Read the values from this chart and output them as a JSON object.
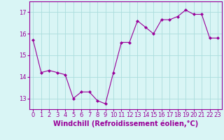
{
  "x": [
    0,
    1,
    2,
    3,
    4,
    5,
    6,
    7,
    8,
    9,
    10,
    11,
    12,
    13,
    14,
    15,
    16,
    17,
    18,
    19,
    20,
    21,
    22,
    23
  ],
  "y": [
    15.7,
    14.2,
    14.3,
    14.2,
    14.1,
    13.0,
    13.3,
    13.3,
    12.9,
    12.75,
    14.2,
    15.6,
    15.6,
    16.6,
    16.3,
    16.0,
    16.65,
    16.65,
    16.8,
    17.1,
    16.9,
    16.9,
    15.8,
    15.8
  ],
  "line_color": "#990099",
  "marker": "D",
  "marker_size": 2,
  "bg_color": "#d9f5f5",
  "grid_color": "#aadddd",
  "xlabel": "Windchill (Refroidissement éolien,°C)",
  "xlabel_fontsize": 7,
  "tick_fontsize": 6,
  "ylim": [
    12.5,
    17.5
  ],
  "yticks": [
    13,
    14,
    15,
    16,
    17
  ],
  "xticks": [
    0,
    1,
    2,
    3,
    4,
    5,
    6,
    7,
    8,
    9,
    10,
    11,
    12,
    13,
    14,
    15,
    16,
    17,
    18,
    19,
    20,
    21,
    22,
    23
  ]
}
